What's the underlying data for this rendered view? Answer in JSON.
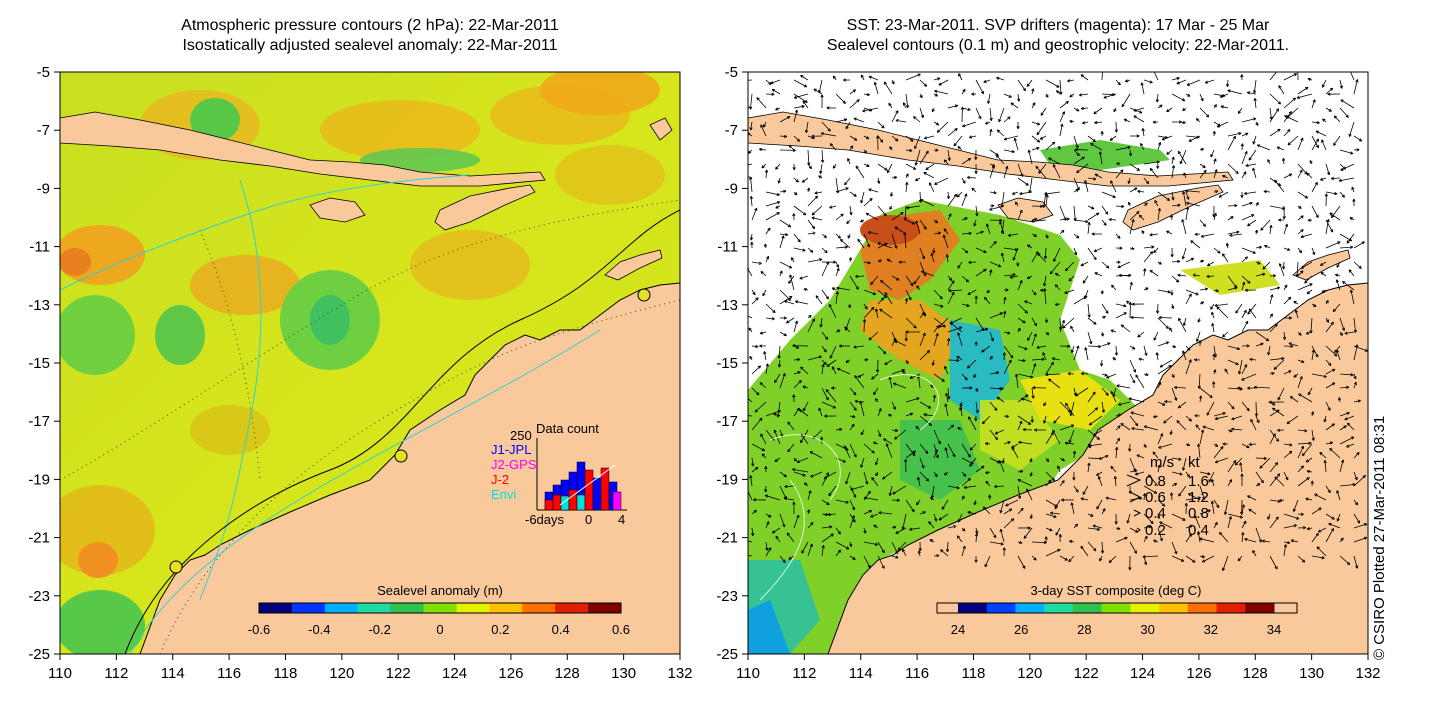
{
  "left_panel": {
    "title_line1": "Atmospheric pressure contours (2 hPa): 22-Mar-2011",
    "title_line2": "Isostatically adjusted sealevel anomaly: 22-Mar-2011",
    "colorbar": {
      "label": "Sealevel anomaly (m)",
      "ticks": [
        "-0.6",
        "-0.4",
        "-0.2",
        "0",
        "0.2",
        "0.4",
        "0.6"
      ],
      "colors": [
        "#00007f",
        "#0033ff",
        "#00b0ff",
        "#20d8a0",
        "#30c050",
        "#7fdf00",
        "#e8f000",
        "#ffc000",
        "#ff7000",
        "#e02000",
        "#7f0000"
      ]
    },
    "inset": {
      "y_max": "250",
      "title": "Data count",
      "legend": [
        {
          "label": "J1-JPL",
          "color": "#0000ff"
        },
        {
          "label": "J2-GPS",
          "color": "#ff00ff"
        },
        {
          "label": "J-2",
          "color": "#ff0000"
        },
        {
          "label": "Envi",
          "color": "#00e0e0"
        }
      ],
      "x_labels": [
        "-6days",
        "0",
        "4"
      ]
    }
  },
  "right_panel": {
    "title_line1": "SST: 23-Mar-2011. SVP drifters (magenta): 17 Mar - 25 Mar",
    "title_line2": "Sealevel contours (0.1 m) and geostrophic velocity: 22-Mar-2011.",
    "colorbar": {
      "label": "3-day SST composite (deg C)",
      "ticks": [
        "24",
        "26",
        "28",
        "30",
        "32",
        "34"
      ],
      "colors": [
        "#00007f",
        "#0040ff",
        "#00b0ff",
        "#20d8a0",
        "#30c050",
        "#7fdf00",
        "#e8f000",
        "#ffc000",
        "#ff7000",
        "#e02000",
        "#7f0000"
      ]
    },
    "velocity_key": {
      "header_ms": "m/s",
      "header_kt": "kt",
      "rows": [
        {
          "ms": "0.8",
          "kt": "1.6"
        },
        {
          "ms": "0.6",
          "kt": "1.2"
        },
        {
          "ms": "0.4",
          "kt": "0.8"
        },
        {
          "ms": "0.2",
          "kt": "0.4"
        }
      ]
    }
  },
  "axes": {
    "x_ticks": [
      "110",
      "112",
      "114",
      "116",
      "118",
      "120",
      "122",
      "124",
      "126",
      "128",
      "130",
      "132"
    ],
    "y_ticks": [
      "-5",
      "-7",
      "-9",
      "-11",
      "-13",
      "-15",
      "-17",
      "-19",
      "-21",
      "-23",
      "-25"
    ]
  },
  "credit": "© CSIRO Plotted 27-Mar-2011 08:31",
  "colors": {
    "land": "#f9c99b",
    "sea_green": "#a6dc3a",
    "sea_yellow": "#d8e81a",
    "no_data": "#ffffff"
  }
}
